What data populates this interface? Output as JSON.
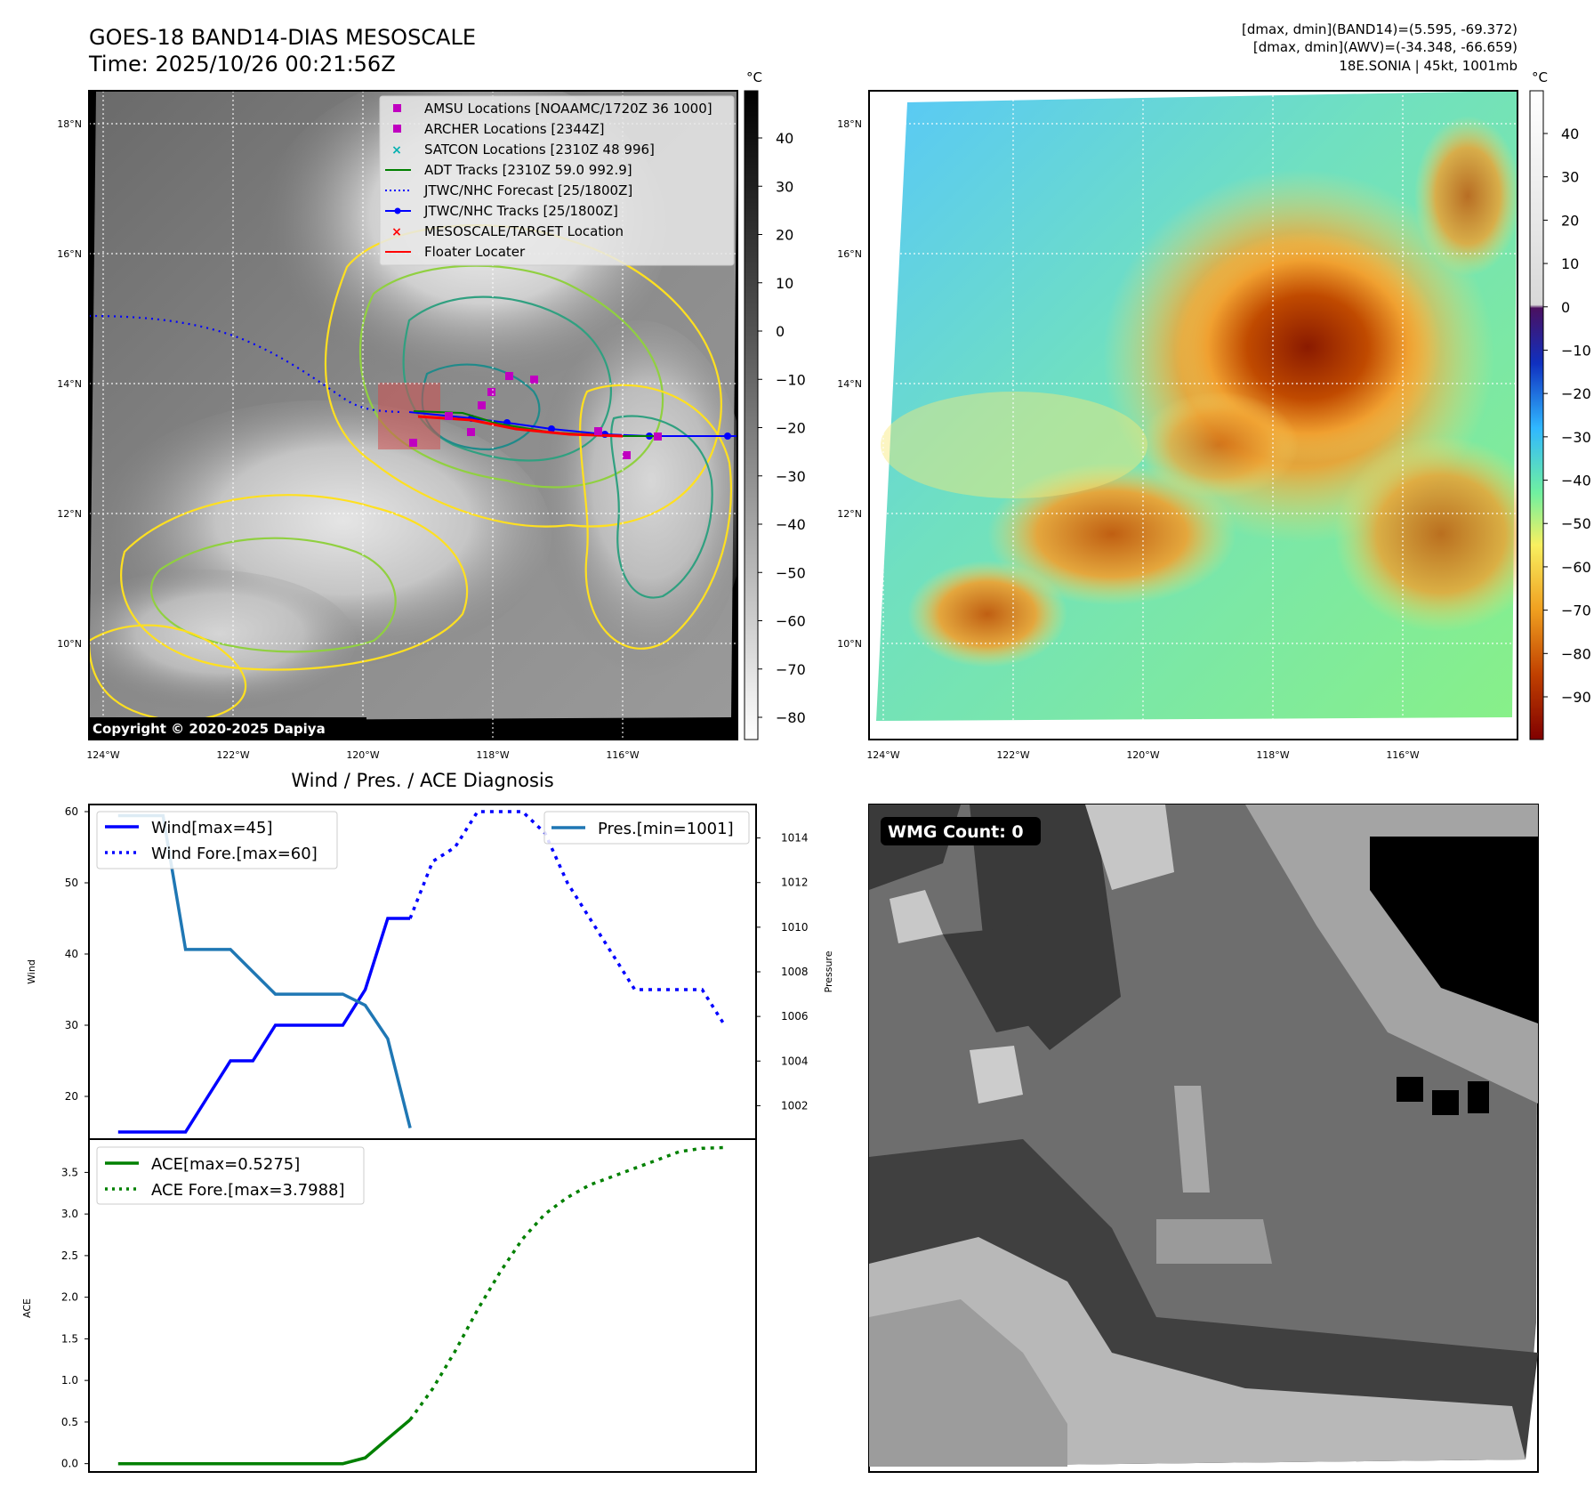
{
  "header": {
    "title_line1": "GOES-18 BAND14-DIAS MESOSCALE",
    "title_line2": "Time: 2025/10/26 00:21:56Z",
    "info_line1": "[dmax, dmin](BAND14)=(5.595, -69.372)",
    "info_line2": "[dmax, dmin](AWV)=(-34.348, -66.659)",
    "info_line3": "18E.SONIA | 45kt, 1001mb"
  },
  "map_ir": {
    "lat_labels": [
      "18°N",
      "16°N",
      "14°N",
      "12°N",
      "10°N"
    ],
    "lon_labels": [
      "124°W",
      "122°W",
      "120°W",
      "118°W",
      "116°W"
    ],
    "copyright": "Copyright © 2020-2025 Dapiya",
    "colorbar_unit": "°C",
    "colorbar_ticks": [
      "40",
      "30",
      "20",
      "10",
      "0",
      "−10",
      "−20",
      "−30",
      "−40",
      "−50",
      "−60",
      "−70",
      "−80"
    ],
    "legend": [
      {
        "label": "AMSU Locations [NOAAMC/1720Z 36 1000]",
        "color": "#c000c0",
        "marker": "square"
      },
      {
        "label": "ARCHER Locations [2344Z]",
        "color": "#c000c0",
        "marker": "square"
      },
      {
        "label": "SATCON Locations [2310Z 48 996]",
        "color": "#00b0b0",
        "marker": "x"
      },
      {
        "label": "ADT Tracks [2310Z 59.0 992.9]",
        "color": "#008000",
        "marker": "line"
      },
      {
        "label": "JTWC/NHC Forecast [25/1800Z]",
        "color": "#0000ff",
        "marker": "dotted"
      },
      {
        "label": "JTWC/NHC Tracks [25/1800Z]",
        "color": "#0000ff",
        "marker": "line-dot"
      },
      {
        "label": "MESOSCALE/TARGET Location",
        "color": "#ff0000",
        "marker": "x"
      },
      {
        "label": "Floater Locater",
        "color": "#ff0000",
        "marker": "line"
      }
    ]
  },
  "map_awv": {
    "lat_labels": [
      "18°N",
      "16°N",
      "14°N",
      "12°N",
      "10°N"
    ],
    "lon_labels": [
      "124°W",
      "122°W",
      "120°W",
      "118°W",
      "116°W"
    ],
    "colorbar_unit": "°C",
    "colorbar_ticks": [
      "40",
      "30",
      "20",
      "10",
      "0",
      "−10",
      "−20",
      "−30",
      "−40",
      "−50",
      "−60",
      "−70",
      "−80",
      "−90"
    ]
  },
  "diag": {
    "title": "Wind / Pres. / ACE Diagnosis",
    "wind_ylabel": "Wind",
    "pres_ylabel": "Pressure",
    "ace_ylabel": "ACE",
    "legend_wind": "Wind[max=45]",
    "legend_wind_fore": "Wind Fore.[max=60]",
    "legend_pres": "Pres.[min=1001]",
    "legend_ace": "ACE[max=0.5275]",
    "legend_ace_fore": "ACE Fore.[max=3.7988]"
  },
  "wmg": {
    "label": "WMG Count: 0"
  },
  "colors": {
    "wind": "#0000ff",
    "pres": "#1f77b4",
    "ace": "#008000"
  },
  "chart_data": [
    {
      "type": "line",
      "name_ref": "wind-pressure",
      "series": [
        {
          "name": "Wind[max=45]",
          "axis": "left",
          "style": "solid",
          "x": [
            0,
            1,
            2,
            3,
            4,
            5,
            6,
            7,
            8,
            9,
            10,
            11,
            12,
            13
          ],
          "values": [
            15,
            15,
            15,
            15,
            20,
            25,
            25,
            30,
            30,
            30,
            30,
            35,
            45,
            45
          ]
        },
        {
          "name": "Wind Fore.[max=60]",
          "axis": "left",
          "style": "dotted",
          "x": [
            13,
            14,
            15,
            16,
            17,
            18,
            19,
            20,
            21,
            22,
            23,
            24,
            25,
            26,
            27
          ],
          "values": [
            45,
            53,
            55,
            60,
            60,
            60,
            57,
            50,
            45,
            40,
            35,
            35,
            35,
            35,
            30
          ]
        },
        {
          "name": "Pres.[min=1001]",
          "axis": "right",
          "style": "solid",
          "x": [
            0,
            1,
            2,
            3,
            4,
            5,
            6,
            7,
            8,
            9,
            10,
            11,
            12,
            13
          ],
          "values": [
            1015,
            1015,
            1015,
            1009,
            1009,
            1009,
            1008,
            1007,
            1007,
            1007,
            1007,
            1006.5,
            1005,
            1001
          ]
        }
      ],
      "ylim_left": [
        14,
        61
      ],
      "yticks_left": [
        20,
        30,
        40,
        50,
        60
      ],
      "ylim_right": [
        1000.5,
        1015.5
      ],
      "yticks_right": [
        1002,
        1004,
        1006,
        1008,
        1010,
        1012,
        1014
      ],
      "xlim": [
        -1.3,
        28.4
      ],
      "ylabel_left": "Wind",
      "ylabel_right": "Pressure",
      "title": "Wind / Pres. / ACE Diagnosis"
    },
    {
      "type": "line",
      "name_ref": "ace",
      "series": [
        {
          "name": "ACE[max=0.5275]",
          "style": "solid",
          "x": [
            0,
            1,
            2,
            3,
            4,
            5,
            6,
            7,
            8,
            9,
            10,
            11,
            12,
            13
          ],
          "values": [
            0,
            0,
            0,
            0,
            0,
            0,
            0,
            0,
            0,
            0,
            0,
            0.07,
            0.3,
            0.5275
          ]
        },
        {
          "name": "ACE Fore.[max=3.7988]",
          "style": "dotted",
          "x": [
            13,
            14,
            15,
            16,
            17,
            18,
            19,
            20,
            21,
            22,
            23,
            24,
            25,
            26,
            27
          ],
          "values": [
            0.5275,
            0.9,
            1.35,
            1.85,
            2.3,
            2.7,
            3.0,
            3.2,
            3.35,
            3.45,
            3.55,
            3.65,
            3.75,
            3.79,
            3.7988
          ]
        }
      ],
      "ylim": [
        -0.1,
        3.9
      ],
      "yticks": [
        0.0,
        0.5,
        1.0,
        1.5,
        2.0,
        2.5,
        3.0,
        3.5
      ],
      "xlim": [
        -1.3,
        28.4
      ],
      "ylabel": "ACE"
    }
  ]
}
